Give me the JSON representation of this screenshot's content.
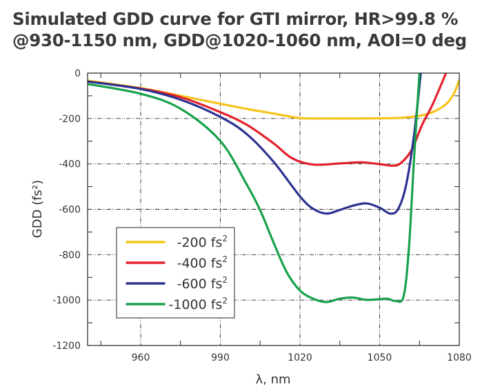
{
  "chart_data": {
    "type": "line",
    "title": [
      "Simulated GDD curve for GTI mirror, HR>99.8 %",
      "@930-1150 nm, GDD@1020-1060 nm, AOI=0 deg"
    ],
    "xlabel": "λ, nm",
    "ylabel": "GDD (fs²)",
    "xlim": [
      940,
      1080
    ],
    "ylim": [
      -1200,
      0
    ],
    "xticks": [
      960,
      990,
      1020,
      1050,
      1080
    ],
    "yticks": [
      0,
      -200,
      -400,
      -600,
      -800,
      -1000,
      -1200
    ],
    "grid": true,
    "legend_position": "bottom-left",
    "series": [
      {
        "name": "-200 fs²",
        "label": "-200 fs",
        "sup": "2",
        "color": "#f7c31a",
        "x": [
          940,
          960,
          975,
          990,
          1000,
          1010,
          1020,
          1030,
          1040,
          1050,
          1058,
          1065,
          1070,
          1075,
          1078,
          1080
        ],
        "y": [
          -33,
          -66,
          -100,
          -135,
          -158,
          -178,
          -198,
          -200,
          -200,
          -199,
          -197,
          -188,
          -172,
          -137,
          -90,
          -30
        ]
      },
      {
        "name": "-400 fs²",
        "label": "-400 fs",
        "sup": "2",
        "color": "#e3202a",
        "x": [
          940,
          960,
          975,
          990,
          1000,
          1010,
          1017,
          1025,
          1035,
          1043,
          1050,
          1055,
          1058,
          1062,
          1066,
          1070,
          1075
        ],
        "y": [
          -37,
          -68,
          -106,
          -172,
          -228,
          -309,
          -375,
          -403,
          -398,
          -393,
          -401,
          -408,
          -396,
          -340,
          -228,
          -137,
          0
        ]
      },
      {
        "name": "-600 fs²",
        "label": "-600 fs",
        "sup": "2",
        "color": "#2b3190",
        "x": [
          940,
          960,
          975,
          990,
          1000,
          1010,
          1020,
          1025,
          1030,
          1035,
          1040,
          1045,
          1050,
          1054,
          1057,
          1060,
          1063,
          1065.5
        ],
        "y": [
          -37,
          -70,
          -117,
          -193,
          -269,
          -390,
          -543,
          -598,
          -619,
          -603,
          -584,
          -574,
          -593,
          -619,
          -598,
          -492,
          -269,
          0
        ]
      },
      {
        "name": "-1000 fs²",
        "label": "-1000 fs",
        "sup": "2",
        "color": "#16a14a",
        "x": [
          940,
          960,
          975,
          990,
          1000,
          1005,
          1010,
          1015,
          1020,
          1025,
          1030,
          1035,
          1040,
          1045,
          1050,
          1053,
          1056,
          1059,
          1061,
          1063,
          1065
        ],
        "y": [
          -48,
          -91,
          -157,
          -299,
          -492,
          -604,
          -745,
          -877,
          -958,
          -994,
          -1009,
          -994,
          -989,
          -999,
          -996,
          -994,
          -1004,
          -984,
          -776,
          -370,
          0
        ]
      }
    ]
  }
}
